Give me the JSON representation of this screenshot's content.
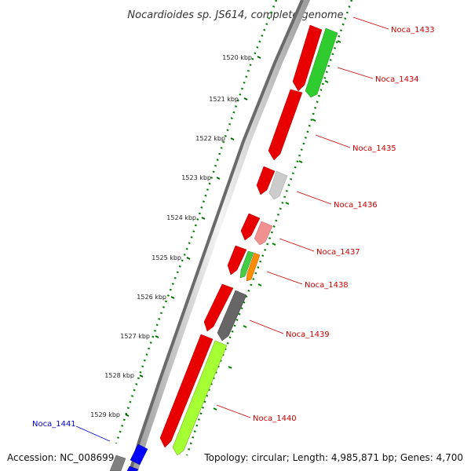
{
  "title": "Nocardioides sp. JS614, complete genome",
  "footer": {
    "accession": "Accession: NC_008699",
    "topology": "Topology: circular; Length: 4,985,871 bp; Genes: 4,700"
  },
  "colors": {
    "forward_label": "#cc0000",
    "reverse_label": "#0000cc",
    "backbone": "#808080",
    "tick": "#006600",
    "cds": "#ff0000"
  },
  "ticks": [
    {
      "label": "1520 kbp"
    },
    {
      "label": "1521 kbp"
    },
    {
      "label": "1522 kbp"
    },
    {
      "label": "1523 kbp"
    },
    {
      "label": "1524 kbp"
    },
    {
      "label": "1525 kbp"
    },
    {
      "label": "1526 kbp"
    },
    {
      "label": "1527 kbp"
    },
    {
      "label": "1528 kbp"
    },
    {
      "label": "1529 kbp"
    }
  ],
  "genes": [
    {
      "name": "Noca_1433",
      "strand": "forward",
      "color": "#33cc33"
    },
    {
      "name": "Noca_1434",
      "strand": "forward",
      "color": "#33cc33"
    },
    {
      "name": "Noca_1435",
      "strand": "forward",
      "color": "#ff0000"
    },
    {
      "name": "Noca_1436",
      "strand": "forward",
      "color": "#c8c8c8"
    },
    {
      "name": "Noca_1437",
      "strand": "forward",
      "color": "#f08080"
    },
    {
      "name": "Noca_1438",
      "strand": "forward",
      "color": "#ff8c00"
    },
    {
      "name": "Noca_1439",
      "strand": "forward",
      "color": "#666666"
    },
    {
      "name": "Noca_1440",
      "strand": "forward",
      "color": "#99ff33"
    },
    {
      "name": "Noca_1441",
      "strand": "reverse",
      "color": "#0000ff"
    }
  ]
}
